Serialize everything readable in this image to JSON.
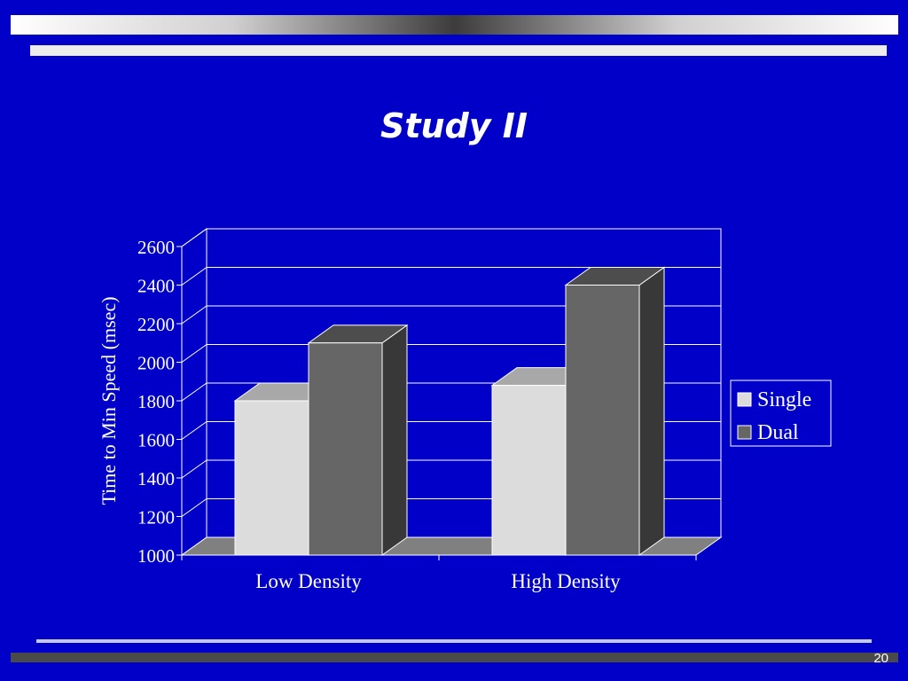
{
  "slide": {
    "title": "Study II",
    "page_number": "20"
  },
  "colors": {
    "background": "#0000c8",
    "single": "#dcdcdc",
    "dual": "#666666"
  },
  "chart_data": {
    "type": "bar",
    "categories": [
      "Low Density",
      "High Density"
    ],
    "series": [
      {
        "name": "Single",
        "values": [
          1800,
          1880
        ]
      },
      {
        "name": "Dual",
        "values": [
          2100,
          2400
        ]
      }
    ],
    "title": "",
    "xlabel": "",
    "ylabel": "Time to Min Speed (msec)",
    "ylim": [
      1000,
      2600
    ],
    "yticks": [
      1000,
      1200,
      1400,
      1600,
      1800,
      2000,
      2200,
      2400,
      2600
    ],
    "grid": true,
    "legend_position": "right",
    "style": "3d"
  }
}
